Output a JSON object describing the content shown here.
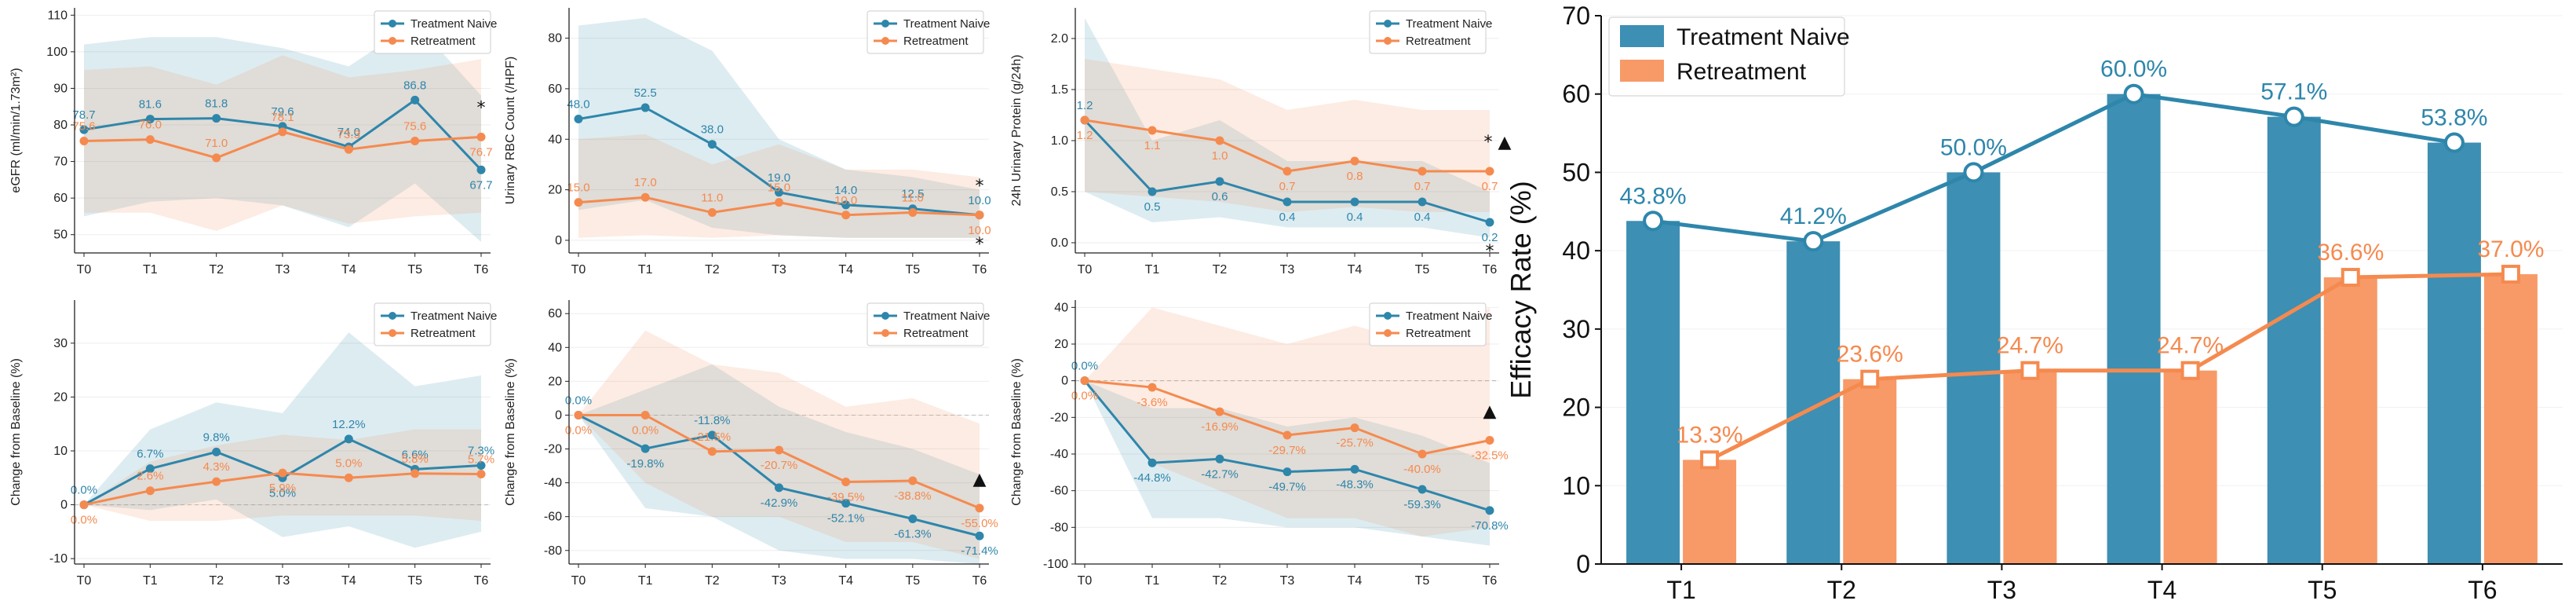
{
  "colors": {
    "naive": "#2e86ab",
    "retreat": "#f58a4f",
    "naive_bar": "#3d8fb3",
    "retreat_bar": "#f79a68"
  },
  "chart_data": [
    {
      "type": "line",
      "ylabel": "eGFR (ml/min/1.73m²)",
      "categories": [
        "T0",
        "T1",
        "T2",
        "T3",
        "T4",
        "T5",
        "T6"
      ],
      "ylim": [
        45,
        112
      ],
      "yticks": [
        50,
        60,
        70,
        80,
        90,
        100,
        110
      ],
      "series": [
        {
          "name": "Treatment Naive",
          "values": [
            78.7,
            81.6,
            81.8,
            79.6,
            74.0,
            86.8,
            67.7
          ],
          "labels": [
            "78.7",
            "81.6",
            "81.8",
            "79.6",
            "74.0",
            "86.8",
            "67.7"
          ],
          "upper": [
            102,
            104,
            104,
            101,
            96,
            108,
            88
          ],
          "lower": [
            55,
            59,
            60,
            58,
            52,
            64,
            48
          ]
        },
        {
          "name": "Retreatment",
          "values": [
            75.6,
            76.0,
            71.0,
            78.1,
            73.3,
            75.6,
            76.7
          ],
          "labels": [
            "75.6",
            "76.0",
            "71.0",
            "78.1",
            "73.3",
            "75.6",
            "76.7"
          ],
          "upper": [
            95,
            96,
            91,
            99,
            93,
            95,
            98
          ],
          "lower": [
            56,
            56,
            51,
            58,
            53,
            55,
            56
          ]
        }
      ],
      "markers": [
        {
          "symbol": "*",
          "at": "T6",
          "position": "above",
          "text": "*"
        }
      ]
    },
    {
      "type": "line",
      "ylabel": "Urinary RBC Count (/HPF)",
      "categories": [
        "T0",
        "T1",
        "T2",
        "T3",
        "T4",
        "T5",
        "T6"
      ],
      "ylim": [
        -5,
        92
      ],
      "yticks": [
        0,
        20,
        40,
        60,
        80
      ],
      "series": [
        {
          "name": "Treatment Naive",
          "values": [
            48.0,
            52.5,
            38.0,
            19.0,
            14.0,
            12.5,
            10.0
          ],
          "labels": [
            "48.0",
            "52.5",
            "38.0",
            "19.0",
            "14.0",
            "12.5",
            "10.0"
          ],
          "upper": [
            85,
            88,
            75,
            40,
            28,
            25,
            20
          ],
          "lower": [
            12,
            16,
            5,
            2,
            1,
            1,
            1
          ]
        },
        {
          "name": "Retreatment",
          "values": [
            15.0,
            17.0,
            11.0,
            15.0,
            10.0,
            11.0,
            10.0
          ],
          "labels": [
            "15.0",
            "17.0",
            "11.0",
            "15.0",
            "10.0",
            "11.0",
            "10.0"
          ],
          "upper": [
            40,
            42,
            30,
            38,
            28,
            28,
            25
          ],
          "lower": [
            1,
            2,
            1,
            2,
            1,
            1,
            1
          ]
        }
      ],
      "markers": [
        {
          "symbol": "*",
          "at": "T6",
          "position": "above",
          "text": "*"
        },
        {
          "symbol": "*",
          "at": "T6",
          "position": "below",
          "text": "*"
        }
      ]
    },
    {
      "type": "line",
      "ylabel": "24h Urinary Protein (g/24h)",
      "categories": [
        "T0",
        "T1",
        "T2",
        "T3",
        "T4",
        "T5",
        "T6"
      ],
      "ylim": [
        -0.1,
        2.3
      ],
      "yticks": [
        0.0,
        0.5,
        1.0,
        1.5,
        2.0
      ],
      "yticklabels": [
        "0.0",
        "0.5",
        "1.0",
        "1.5",
        "2.0"
      ],
      "series": [
        {
          "name": "Treatment Naive",
          "values": [
            1.2,
            0.5,
            0.6,
            0.4,
            0.4,
            0.4,
            0.2
          ],
          "labels": [
            "1.2",
            "0.5",
            "0.6",
            "0.4",
            "0.4",
            "0.4",
            "0.2"
          ],
          "upper": [
            2.2,
            1.0,
            1.2,
            0.8,
            0.8,
            0.8,
            0.5
          ],
          "lower": [
            0.5,
            0.2,
            0.25,
            0.15,
            0.15,
            0.15,
            0.05
          ]
        },
        {
          "name": "Retreatment",
          "values": [
            1.2,
            1.1,
            1.0,
            0.7,
            0.8,
            0.7,
            0.7
          ],
          "labels": [
            "1.2",
            "1.1",
            "1.0",
            "0.7",
            "0.8",
            "0.7",
            "0.7"
          ],
          "upper": [
            1.8,
            1.7,
            1.6,
            1.3,
            1.4,
            1.3,
            1.3
          ],
          "lower": [
            0.5,
            0.45,
            0.4,
            0.3,
            0.35,
            0.3,
            0.3
          ]
        }
      ],
      "markers": [
        {
          "symbol": "*",
          "at": "T6",
          "position": "above",
          "text": "* ▲"
        },
        {
          "symbol": "*",
          "at": "T6",
          "position": "below",
          "text": "*"
        }
      ]
    },
    {
      "type": "line",
      "ylabel": "Change from Baseline (%)",
      "categories": [
        "T0",
        "T1",
        "T2",
        "T3",
        "T4",
        "T5",
        "T6"
      ],
      "ylim": [
        -11,
        38
      ],
      "yticks": [
        -10,
        0,
        10,
        20,
        30
      ],
      "series": [
        {
          "name": "Treatment Naive",
          "values": [
            0.0,
            6.7,
            9.8,
            5.0,
            12.2,
            6.6,
            7.3
          ],
          "labels": [
            "0.0%",
            "6.7%",
            "9.8%",
            "5.0%",
            "12.2%",
            "6.6%",
            "7.3%"
          ],
          "upper": [
            0,
            14,
            19,
            17,
            32,
            22,
            24
          ],
          "lower": [
            0,
            -1,
            1,
            -6,
            -4,
            -8,
            -5
          ]
        },
        {
          "name": "Retreatment",
          "values": [
            0.0,
            2.6,
            4.3,
            5.9,
            5.0,
            5.8,
            5.7
          ],
          "labels": [
            "0.0%",
            "2.6%",
            "4.3%",
            "5.9%",
            "5.0%",
            "5.8%",
            "5.7%"
          ],
          "upper": [
            0,
            8,
            11,
            13,
            12,
            14,
            14
          ],
          "lower": [
            0,
            -3,
            -3,
            -2,
            -2,
            -2,
            -3
          ]
        }
      ],
      "markers": []
    },
    {
      "type": "line",
      "ylabel": "Change from Baseline (%)",
      "categories": [
        "T0",
        "T1",
        "T2",
        "T3",
        "T4",
        "T5",
        "T6"
      ],
      "ylim": [
        -88,
        68
      ],
      "yticks": [
        -80,
        -60,
        -40,
        -20,
        0,
        20,
        40,
        60
      ],
      "series": [
        {
          "name": "Treatment Naive",
          "values": [
            0.0,
            -19.8,
            -11.8,
            -42.9,
            -52.1,
            -61.3,
            -71.4
          ],
          "labels": [
            "0.0%",
            "-19.8%",
            "-11.8%",
            "-42.9%",
            "-52.1%",
            "-61.3%",
            "-71.4%"
          ],
          "upper": [
            0,
            15,
            30,
            5,
            -10,
            -20,
            -35
          ],
          "lower": [
            0,
            -55,
            -60,
            -80,
            -85,
            -85,
            -88
          ]
        },
        {
          "name": "Retreatment",
          "values": [
            0.0,
            0.0,
            -21.5,
            -20.7,
            -39.5,
            -38.8,
            -55.0
          ],
          "labels": [
            "0.0%",
            "0.0%",
            "-21.5%",
            "-20.7%",
            "-39.5%",
            "-38.8%",
            "-55.0%"
          ],
          "upper": [
            0,
            50,
            30,
            25,
            5,
            10,
            -5
          ],
          "lower": [
            0,
            -40,
            -60,
            -60,
            -75,
            -75,
            -85
          ]
        }
      ],
      "markers": [
        {
          "symbol": "▲",
          "at": "T6",
          "position": "above",
          "text": "▲"
        }
      ],
      "refline": 0
    },
    {
      "type": "line",
      "ylabel": "Change from Baseline (%)",
      "categories": [
        "T0",
        "T1",
        "T2",
        "T3",
        "T4",
        "T5",
        "T6"
      ],
      "ylim": [
        -100,
        44
      ],
      "yticks": [
        -100,
        -80,
        -60,
        -40,
        -20,
        0,
        20,
        40
      ],
      "series": [
        {
          "name": "Treatment Naive",
          "values": [
            0.0,
            -44.8,
            -42.7,
            -49.7,
            -48.3,
            -59.3,
            -70.8
          ],
          "labels": [
            "0.0%",
            "-44.8%",
            "-42.7%",
            "-49.7%",
            "-48.3%",
            "-59.3%",
            "-70.8%"
          ],
          "upper": [
            0,
            -15,
            -15,
            -25,
            -20,
            -30,
            -45
          ],
          "lower": [
            0,
            -75,
            -75,
            -80,
            -80,
            -85,
            -90
          ]
        },
        {
          "name": "Retreatment",
          "values": [
            0.0,
            -3.6,
            -16.9,
            -29.7,
            -25.7,
            -40.0,
            -32.5
          ],
          "labels": [
            "0.0%",
            "-3.6%",
            "-16.9%",
            "-29.7%",
            "-25.7%",
            "-40.0%",
            "-32.5%"
          ],
          "upper": [
            0,
            40,
            30,
            20,
            30,
            20,
            40
          ],
          "lower": [
            0,
            -45,
            -60,
            -75,
            -75,
            -85,
            -80
          ]
        }
      ],
      "markers": [
        {
          "symbol": "▲",
          "at": "T6",
          "position": "above",
          "text": "▲"
        }
      ],
      "refline": 0
    },
    {
      "type": "bar",
      "ylabel": "Efficacy Rate (%)",
      "categories": [
        "T1",
        "T2",
        "T3",
        "T4",
        "T5",
        "T6"
      ],
      "ylim": [
        0,
        70
      ],
      "yticks": [
        0,
        10,
        20,
        30,
        40,
        50,
        60,
        70
      ],
      "legend_position": "top-left",
      "series": [
        {
          "name": "Treatment  Naive",
          "values": [
            43.8,
            41.2,
            50.0,
            60.0,
            57.1,
            53.8
          ],
          "labels": [
            "43.8%",
            "41.2%",
            "50.0%",
            "60.0%",
            "57.1%",
            "53.8%"
          ]
        },
        {
          "name": "Retreatment",
          "values": [
            13.3,
            23.6,
            24.7,
            24.7,
            36.6,
            37.0
          ],
          "labels": [
            "13.3%",
            "23.6%",
            "24.7%",
            "24.7%",
            "36.6%",
            "37.0%"
          ]
        }
      ]
    }
  ]
}
